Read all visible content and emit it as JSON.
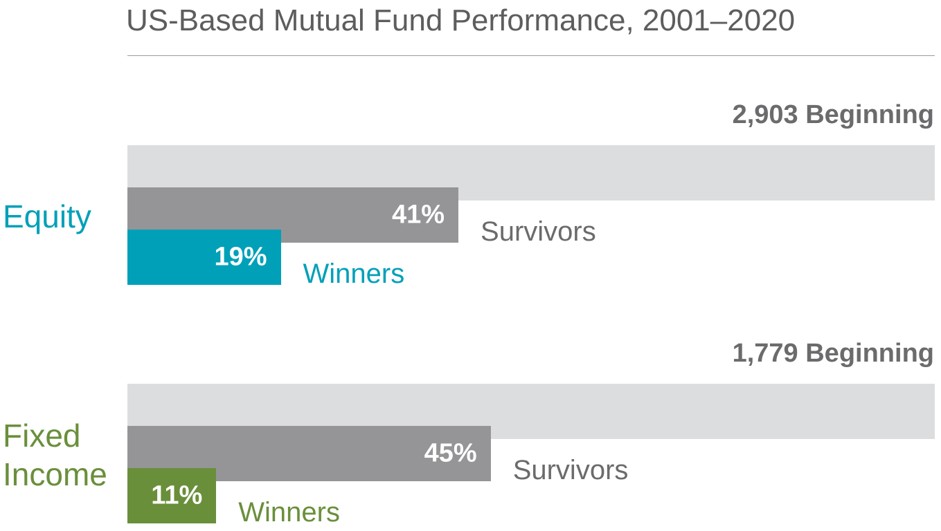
{
  "chart_data": {
    "type": "bar",
    "title": "US-Based Mutual Fund Performance, 2001–2020",
    "xlim": [
      0,
      100
    ],
    "groups": [
      {
        "category": "Equity",
        "color": "#00a0b9",
        "beginning_count": 2903,
        "beginning_label": "2,903 Beginning",
        "beginning_pct": 100,
        "survivors_pct": 41,
        "survivors_value_label": "41%",
        "survivors_label": "Survivors",
        "winners_pct": 19,
        "winners_value_label": "19%",
        "winners_label": "Winners"
      },
      {
        "category": "Fixed Income",
        "color": "#6a8f3b",
        "beginning_count": 1779,
        "beginning_label": "1,779 Beginning",
        "beginning_pct": 100,
        "survivors_pct": 45,
        "survivors_value_label": "45%",
        "survivors_label": "Survivors",
        "winners_pct": 11,
        "winners_value_label": "11%",
        "winners_label": "Winners"
      }
    ],
    "grid": false,
    "legend": "none"
  },
  "colors": {
    "beginning_bar": "#dcddde",
    "survivors_bar": "#959598",
    "survivors_text": "#6b6b6e"
  }
}
